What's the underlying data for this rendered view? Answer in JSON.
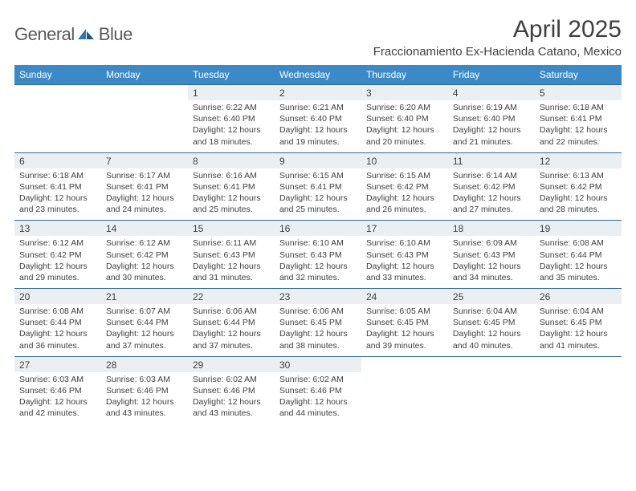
{
  "logo": {
    "text1": "General",
    "text2": "Blue"
  },
  "title": "April 2025",
  "location": "Fraccionamiento Ex-Hacienda Catano, Mexico",
  "header_bg": "#3b89c8",
  "daynum_bg": "#eceff1",
  "border_color": "#2d6aa0",
  "weekdays": [
    "Sunday",
    "Monday",
    "Tuesday",
    "Wednesday",
    "Thursday",
    "Friday",
    "Saturday"
  ],
  "weeks": [
    {
      "nums": [
        "",
        "",
        "1",
        "2",
        "3",
        "4",
        "5"
      ],
      "cells": [
        null,
        null,
        {
          "sr": "Sunrise: 6:22 AM",
          "ss": "Sunset: 6:40 PM",
          "d1": "Daylight: 12 hours",
          "d2": "and 18 minutes."
        },
        {
          "sr": "Sunrise: 6:21 AM",
          "ss": "Sunset: 6:40 PM",
          "d1": "Daylight: 12 hours",
          "d2": "and 19 minutes."
        },
        {
          "sr": "Sunrise: 6:20 AM",
          "ss": "Sunset: 6:40 PM",
          "d1": "Daylight: 12 hours",
          "d2": "and 20 minutes."
        },
        {
          "sr": "Sunrise: 6:19 AM",
          "ss": "Sunset: 6:40 PM",
          "d1": "Daylight: 12 hours",
          "d2": "and 21 minutes."
        },
        {
          "sr": "Sunrise: 6:18 AM",
          "ss": "Sunset: 6:41 PM",
          "d1": "Daylight: 12 hours",
          "d2": "and 22 minutes."
        }
      ]
    },
    {
      "nums": [
        "6",
        "7",
        "8",
        "9",
        "10",
        "11",
        "12"
      ],
      "cells": [
        {
          "sr": "Sunrise: 6:18 AM",
          "ss": "Sunset: 6:41 PM",
          "d1": "Daylight: 12 hours",
          "d2": "and 23 minutes."
        },
        {
          "sr": "Sunrise: 6:17 AM",
          "ss": "Sunset: 6:41 PM",
          "d1": "Daylight: 12 hours",
          "d2": "and 24 minutes."
        },
        {
          "sr": "Sunrise: 6:16 AM",
          "ss": "Sunset: 6:41 PM",
          "d1": "Daylight: 12 hours",
          "d2": "and 25 minutes."
        },
        {
          "sr": "Sunrise: 6:15 AM",
          "ss": "Sunset: 6:41 PM",
          "d1": "Daylight: 12 hours",
          "d2": "and 25 minutes."
        },
        {
          "sr": "Sunrise: 6:15 AM",
          "ss": "Sunset: 6:42 PM",
          "d1": "Daylight: 12 hours",
          "d2": "and 26 minutes."
        },
        {
          "sr": "Sunrise: 6:14 AM",
          "ss": "Sunset: 6:42 PM",
          "d1": "Daylight: 12 hours",
          "d2": "and 27 minutes."
        },
        {
          "sr": "Sunrise: 6:13 AM",
          "ss": "Sunset: 6:42 PM",
          "d1": "Daylight: 12 hours",
          "d2": "and 28 minutes."
        }
      ]
    },
    {
      "nums": [
        "13",
        "14",
        "15",
        "16",
        "17",
        "18",
        "19"
      ],
      "cells": [
        {
          "sr": "Sunrise: 6:12 AM",
          "ss": "Sunset: 6:42 PM",
          "d1": "Daylight: 12 hours",
          "d2": "and 29 minutes."
        },
        {
          "sr": "Sunrise: 6:12 AM",
          "ss": "Sunset: 6:42 PM",
          "d1": "Daylight: 12 hours",
          "d2": "and 30 minutes."
        },
        {
          "sr": "Sunrise: 6:11 AM",
          "ss": "Sunset: 6:43 PM",
          "d1": "Daylight: 12 hours",
          "d2": "and 31 minutes."
        },
        {
          "sr": "Sunrise: 6:10 AM",
          "ss": "Sunset: 6:43 PM",
          "d1": "Daylight: 12 hours",
          "d2": "and 32 minutes."
        },
        {
          "sr": "Sunrise: 6:10 AM",
          "ss": "Sunset: 6:43 PM",
          "d1": "Daylight: 12 hours",
          "d2": "and 33 minutes."
        },
        {
          "sr": "Sunrise: 6:09 AM",
          "ss": "Sunset: 6:43 PM",
          "d1": "Daylight: 12 hours",
          "d2": "and 34 minutes."
        },
        {
          "sr": "Sunrise: 6:08 AM",
          "ss": "Sunset: 6:44 PM",
          "d1": "Daylight: 12 hours",
          "d2": "and 35 minutes."
        }
      ]
    },
    {
      "nums": [
        "20",
        "21",
        "22",
        "23",
        "24",
        "25",
        "26"
      ],
      "cells": [
        {
          "sr": "Sunrise: 6:08 AM",
          "ss": "Sunset: 6:44 PM",
          "d1": "Daylight: 12 hours",
          "d2": "and 36 minutes."
        },
        {
          "sr": "Sunrise: 6:07 AM",
          "ss": "Sunset: 6:44 PM",
          "d1": "Daylight: 12 hours",
          "d2": "and 37 minutes."
        },
        {
          "sr": "Sunrise: 6:06 AM",
          "ss": "Sunset: 6:44 PM",
          "d1": "Daylight: 12 hours",
          "d2": "and 37 minutes."
        },
        {
          "sr": "Sunrise: 6:06 AM",
          "ss": "Sunset: 6:45 PM",
          "d1": "Daylight: 12 hours",
          "d2": "and 38 minutes."
        },
        {
          "sr": "Sunrise: 6:05 AM",
          "ss": "Sunset: 6:45 PM",
          "d1": "Daylight: 12 hours",
          "d2": "and 39 minutes."
        },
        {
          "sr": "Sunrise: 6:04 AM",
          "ss": "Sunset: 6:45 PM",
          "d1": "Daylight: 12 hours",
          "d2": "and 40 minutes."
        },
        {
          "sr": "Sunrise: 6:04 AM",
          "ss": "Sunset: 6:45 PM",
          "d1": "Daylight: 12 hours",
          "d2": "and 41 minutes."
        }
      ]
    },
    {
      "nums": [
        "27",
        "28",
        "29",
        "30",
        "",
        "",
        ""
      ],
      "cells": [
        {
          "sr": "Sunrise: 6:03 AM",
          "ss": "Sunset: 6:46 PM",
          "d1": "Daylight: 12 hours",
          "d2": "and 42 minutes."
        },
        {
          "sr": "Sunrise: 6:03 AM",
          "ss": "Sunset: 6:46 PM",
          "d1": "Daylight: 12 hours",
          "d2": "and 43 minutes."
        },
        {
          "sr": "Sunrise: 6:02 AM",
          "ss": "Sunset: 6:46 PM",
          "d1": "Daylight: 12 hours",
          "d2": "and 43 minutes."
        },
        {
          "sr": "Sunrise: 6:02 AM",
          "ss": "Sunset: 6:46 PM",
          "d1": "Daylight: 12 hours",
          "d2": "and 44 minutes."
        },
        null,
        null,
        null
      ]
    }
  ]
}
